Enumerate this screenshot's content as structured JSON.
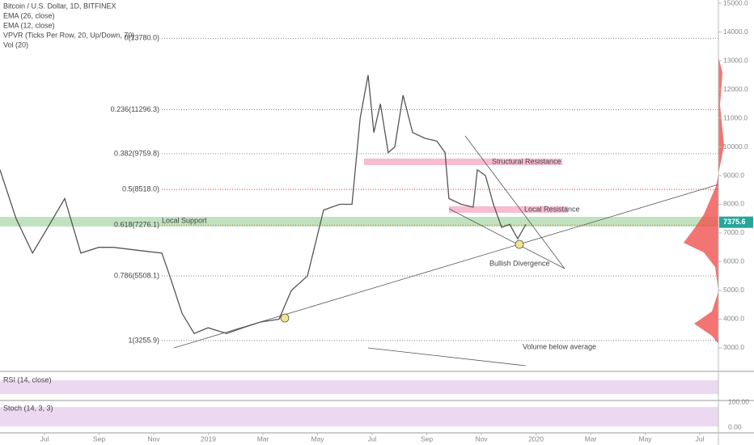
{
  "header": {
    "symbol": "Bitcoin / U.S. Dollar, 1D, BITFINEX",
    "studies": [
      "EMA (26, close)",
      "EMA (12, close)",
      "VPVR (Ticks Per Row, 20, Up/Down, 70)",
      "Vol (20)"
    ]
  },
  "chart_data": {
    "type": "line",
    "series": [
      {
        "name": "BTCUSD",
        "color": "#555555",
        "x": [
          -1.63,
          -1.04,
          -0.44,
          0,
          0.74,
          1.33,
          1.99,
          2.52,
          3.41,
          4.3,
          4.59,
          5.04,
          5.48,
          5.99,
          6.67,
          7.26,
          7.91,
          8.59,
          9.04,
          9.63,
          10.22,
          10.81,
          11.26,
          11.56,
          11.85,
          12.06,
          12.3,
          12.59,
          12.83,
          13.13,
          13.48,
          13.93,
          14.37,
          14.67,
          14.81,
          15.26,
          15.7,
          15.85,
          16.15,
          16.44,
          16.74,
          17.04,
          17.33,
          17.63
        ],
        "values": [
          9200,
          7500,
          6300,
          7000,
          8200,
          6300,
          6500,
          6500,
          6400,
          6300,
          5500,
          4200,
          3500,
          3700,
          3500,
          3700,
          3900,
          4000,
          5000,
          5500,
          7800,
          8000,
          8000,
          11000,
          12500,
          10500,
          11500,
          9800,
          10000,
          11800,
          10500,
          10300,
          10200,
          9800,
          8200,
          8000,
          7900,
          9200,
          9000,
          8000,
          7200,
          7300,
          6800,
          7300
        ]
      }
    ],
    "xlim": [
      -1.63,
      24.68
    ],
    "xticks": [
      {
        "value": 0,
        "label": "Jul"
      },
      {
        "value": 2,
        "label": "Sep"
      },
      {
        "value": 4,
        "label": "Nov"
      },
      {
        "value": 6,
        "label": "2019"
      },
      {
        "value": 8,
        "label": "Mar"
      },
      {
        "value": 10,
        "label": "May"
      },
      {
        "value": 12,
        "label": "Jul"
      },
      {
        "value": 14,
        "label": "Sep"
      },
      {
        "value": 16,
        "label": "Nov"
      },
      {
        "value": 18,
        "label": "2020"
      },
      {
        "value": 20,
        "label": "Mar"
      },
      {
        "value": 22,
        "label": "May"
      },
      {
        "value": 24,
        "label": "Jul"
      }
    ],
    "ylim": [
      2211,
      15113
    ],
    "yticks": [
      {
        "value": 3000,
        "label": "3000.0"
      },
      {
        "value": 4000,
        "label": "4000.0"
      },
      {
        "value": 5000,
        "label": "5000.0"
      },
      {
        "value": 6000,
        "label": "6000.0"
      },
      {
        "value": 7000,
        "label": "7000.0"
      },
      {
        "value": 8000,
        "label": "8000.0"
      },
      {
        "value": 9000,
        "label": "9000.0"
      },
      {
        "value": 10000,
        "label": "10000.0"
      },
      {
        "value": 11000,
        "label": "11000.0"
      },
      {
        "value": 12000,
        "label": "12000.0"
      },
      {
        "value": 13000,
        "label": "13000.0"
      },
      {
        "value": 14000,
        "label": "14000.0"
      },
      {
        "value": 15000,
        "label": "15000.0"
      }
    ],
    "fib_levels": [
      {
        "value": 13780,
        "label": "0(13780.0)",
        "color": "#888888"
      },
      {
        "value": 11296.3,
        "label": "0.236(11296.3)",
        "color": "#888888"
      },
      {
        "value": 9759.8,
        "label": "0.382(9759.8)",
        "color": "#888888"
      },
      {
        "value": 8518,
        "label": "0.5(8518.0)",
        "color": "#e53935"
      },
      {
        "value": 7276.1,
        "label": "0.618(7276.1)",
        "color": "#ef6c00"
      },
      {
        "value": 5508.1,
        "label": "0.786(5508.1)",
        "color": "#888888"
      },
      {
        "value": 3255.9,
        "label": "1(3255.9)",
        "color": "#888888"
      }
    ],
    "last_price": {
      "value": 7375.6,
      "label": "7375.6",
      "color": "#26a69a"
    },
    "annotations": [
      "Structural Resistance",
      "Local Resistance",
      "Local Support",
      "Bullish Divergence",
      "Volume below average"
    ]
  },
  "panes": {
    "rsi": "RSI (14, close)",
    "stoch": "Stoch (14, 3, 3)",
    "stoch_ticks": [
      "100.00",
      "0.00"
    ]
  }
}
